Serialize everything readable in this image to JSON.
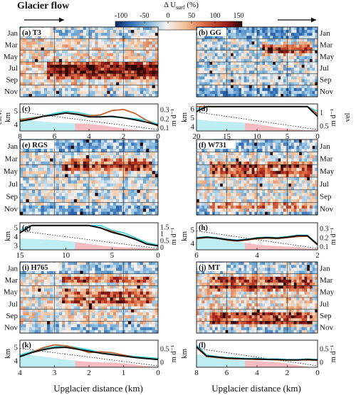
{
  "header": {
    "flow_label": "Glacier flow",
    "colorbar_label": "Δ U",
    "colorbar_sub": "surf",
    "colorbar_unit": " (%)",
    "colorbar_ticks": [
      "-100",
      "-50",
      "0",
      "50",
      "100",
      "150"
    ]
  },
  "colors": {
    "cyan": "#3fd6df",
    "orange": "#c8612a",
    "black": "#111111",
    "bed": "#f4bcc0",
    "bed_cyan": "#bfeef2",
    "grid": "#111111"
  },
  "months": [
    "Jan",
    "Mar",
    "May",
    "Jul",
    "Sep",
    "Nov"
  ],
  "x_axis_label": "Upglacier distance (km)",
  "chart_data": [
    {
      "type": "heatmap",
      "panel": "a",
      "label": "(a) T3",
      "months_side": "left",
      "x_ticks": [
        "8",
        "6",
        "4",
        "2",
        "0"
      ],
      "xlim": [
        8,
        0
      ],
      "colorbar": {
        "min": -100,
        "max": 150,
        "colormap": "blue-white-red"
      }
    },
    {
      "type": "line",
      "panel": "c",
      "label": "(c)",
      "ylabel_left": "elev.",
      "ylabel_left_unit": "km",
      "ylabel_right": "m d⁻¹",
      "x_ticks": [
        "8",
        "6",
        "4",
        "2",
        "0"
      ],
      "xlim": [
        8,
        0
      ],
      "y_left_ticks": [
        "4",
        "5"
      ],
      "y_right_ticks": [
        "0.1",
        "0.2",
        "0.3"
      ],
      "series": [
        {
          "color": "cyan",
          "y": [
            0.24,
            0.27,
            0.3,
            0.36,
            0.4,
            0.38,
            0.33,
            0.3,
            0.29,
            0.27,
            0.25,
            0.22,
            0.14
          ]
        },
        {
          "color": "orange",
          "y": [
            0.23,
            0.26,
            0.3,
            0.33,
            0.37,
            0.35,
            0.31,
            0.33,
            0.42,
            0.44,
            0.36,
            0.22,
            0.1
          ]
        },
        {
          "color": "black",
          "y": [
            0.2,
            0.24,
            0.3,
            0.33,
            0.37,
            0.34,
            0.29,
            0.29,
            0.3,
            0.27,
            0.23,
            0.18,
            0.12
          ]
        }
      ]
    },
    {
      "type": "heatmap",
      "panel": "b",
      "label": "(b) GG",
      "months_side": "right",
      "x_ticks": [],
      "colorbar": {
        "min": -100,
        "max": 150,
        "colormap": "blue-white-red"
      }
    },
    {
      "type": "line",
      "panel": "d",
      "label": "(d)",
      "ylabel_left": "km",
      "ylabel_right": "m d⁻¹",
      "ylabel_right_outer": "vel",
      "x_ticks": [
        "20",
        "15",
        "10",
        "5",
        "0"
      ],
      "xlim": [
        23,
        0
      ],
      "y_left_ticks": [
        "4",
        "5",
        "6"
      ],
      "y_right_ticks": [
        "0.5",
        "1"
      ],
      "series": [
        {
          "color": "cyan",
          "y": [
            0.45,
            0.6,
            0.85,
            0.95,
            0.8,
            0.7,
            0.7,
            0.65,
            0.6,
            0.65,
            0.7,
            0.8,
            0.4
          ]
        },
        {
          "color": "orange",
          "y": [
            0.5,
            0.7,
            0.75,
            0.7,
            0.65,
            0.6,
            0.6,
            0.58,
            0.6,
            0.65,
            0.7,
            0.75,
            0.35
          ]
        },
        {
          "color": "black",
          "y": [
            0.4,
            0.55,
            0.8,
            0.85,
            0.7,
            0.62,
            0.6,
            0.57,
            0.55,
            0.58,
            0.62,
            0.7,
            0.3
          ]
        }
      ]
    },
    {
      "type": "heatmap",
      "panel": "e",
      "label": "(e) RGS",
      "months_side": "left",
      "x_ticks": [],
      "colorbar": {
        "min": -100,
        "max": 150,
        "colormap": "blue-white-red"
      }
    },
    {
      "type": "line",
      "panel": "g",
      "label": "(g)",
      "ylabel_left": "km",
      "ylabel_right": "m d⁻¹",
      "x_ticks": [
        "15",
        "10",
        "5",
        "0"
      ],
      "xlim": [
        16,
        0
      ],
      "y_left_ticks": [
        "3",
        "4",
        "5"
      ],
      "y_right_ticks": [
        "0",
        "0.5",
        "1",
        "1.5"
      ],
      "series": [
        {
          "color": "cyan",
          "y": [
            0.4,
            0.8,
            1.0,
            1.3,
            1.4,
            0.9,
            0.6,
            0.5,
            0.4,
            0.35,
            0.25,
            0.15,
            0.1
          ]
        },
        {
          "color": "orange",
          "y": [
            0.35,
            0.7,
            0.95,
            1.3,
            1.45,
            0.95,
            0.6,
            0.45,
            0.38,
            0.3,
            0.22,
            0.12,
            0.08
          ]
        },
        {
          "color": "black",
          "y": [
            0.35,
            0.75,
            0.95,
            1.35,
            1.4,
            0.9,
            0.58,
            0.45,
            0.36,
            0.3,
            0.22,
            0.12,
            0.08
          ]
        }
      ]
    },
    {
      "type": "heatmap",
      "panel": "f",
      "label": "(f) W731",
      "months_side": "right",
      "x_ticks": [],
      "colorbar": {
        "min": -100,
        "max": 150,
        "colormap": "blue-white-red"
      }
    },
    {
      "type": "line",
      "panel": "h",
      "label": "(h)",
      "ylabel_left": "km",
      "ylabel_right": "m d⁻¹",
      "x_ticks": [
        "6",
        "4",
        "2"
      ],
      "xlim": [
        7,
        0
      ],
      "y_left_ticks": [
        "4",
        "5"
      ],
      "y_right_ticks": [
        "0.1",
        "0.2",
        "0.3"
      ],
      "series": [
        {
          "color": "cyan",
          "y": [
            0.25,
            0.27,
            0.25,
            0.22,
            0.2,
            0.22,
            0.25,
            0.26,
            0.25,
            0.27,
            0.3,
            0.3,
            0.12
          ]
        },
        {
          "color": "orange",
          "y": [
            0.23,
            0.25,
            0.24,
            0.2,
            0.18,
            0.2,
            0.23,
            0.24,
            0.23,
            0.25,
            0.27,
            0.28,
            0.1
          ]
        },
        {
          "color": "black",
          "y": [
            0.24,
            0.26,
            0.24,
            0.21,
            0.19,
            0.21,
            0.24,
            0.25,
            0.24,
            0.26,
            0.29,
            0.29,
            0.11
          ]
        }
      ]
    },
    {
      "type": "heatmap",
      "panel": "i",
      "label": "(i) H765",
      "months_side": "left",
      "x_ticks": [],
      "colorbar": {
        "min": -100,
        "max": 150,
        "colormap": "blue-white-red"
      }
    },
    {
      "type": "line",
      "panel": "k",
      "label": "(k)",
      "ylabel_left": "km",
      "ylabel_right": "m d⁻¹",
      "x_ticks": [
        "4",
        "3",
        "2",
        "1",
        "0"
      ],
      "xlim": [
        4.5,
        0
      ],
      "y_left_ticks": [
        "4",
        "5"
      ],
      "y_right_ticks": [
        "0",
        "0.5"
      ],
      "series": [
        {
          "color": "cyan",
          "y": [
            0.25,
            0.32,
            0.38,
            0.42,
            0.44,
            0.4,
            0.36,
            0.3,
            0.27,
            0.25,
            0.22,
            0.2,
            0.18
          ]
        },
        {
          "color": "orange",
          "y": [
            0.22,
            0.3,
            0.4,
            0.46,
            0.44,
            0.38,
            0.3,
            0.32,
            0.3,
            0.25,
            0.2,
            0.18,
            0.16
          ]
        },
        {
          "color": "black",
          "y": [
            0.22,
            0.3,
            0.36,
            0.4,
            0.41,
            0.37,
            0.33,
            0.29,
            0.26,
            0.23,
            0.2,
            0.18,
            0.16
          ]
        }
      ]
    },
    {
      "type": "heatmap",
      "panel": "j",
      "label": "(j) MT",
      "months_side": "right",
      "x_ticks": [],
      "colorbar": {
        "min": -100,
        "max": 150,
        "colormap": "blue-white-red"
      }
    },
    {
      "type": "line",
      "panel": "l",
      "label": "(l)",
      "ylabel_left": "km",
      "ylabel_right": "m d⁻¹",
      "x_ticks": [
        "8",
        "6",
        "4",
        "2",
        "0"
      ],
      "xlim": [
        8.5,
        0
      ],
      "y_left_ticks": [],
      "y_right_ticks": [
        "0",
        "0.5"
      ],
      "series": [
        {
          "color": "cyan",
          "y": [
            0.45,
            0.25,
            0.22,
            0.2,
            0.19,
            0.18,
            0.18,
            0.17,
            0.17,
            0.16,
            0.16,
            0.17,
            0.16
          ]
        },
        {
          "color": "orange",
          "y": [
            0.4,
            0.22,
            0.2,
            0.18,
            0.17,
            0.17,
            0.16,
            0.16,
            0.15,
            0.15,
            0.15,
            0.15,
            0.14
          ]
        },
        {
          "color": "black",
          "y": [
            0.42,
            0.23,
            0.21,
            0.19,
            0.18,
            0.17,
            0.17,
            0.16,
            0.16,
            0.15,
            0.15,
            0.16,
            0.15
          ]
        }
      ]
    }
  ]
}
